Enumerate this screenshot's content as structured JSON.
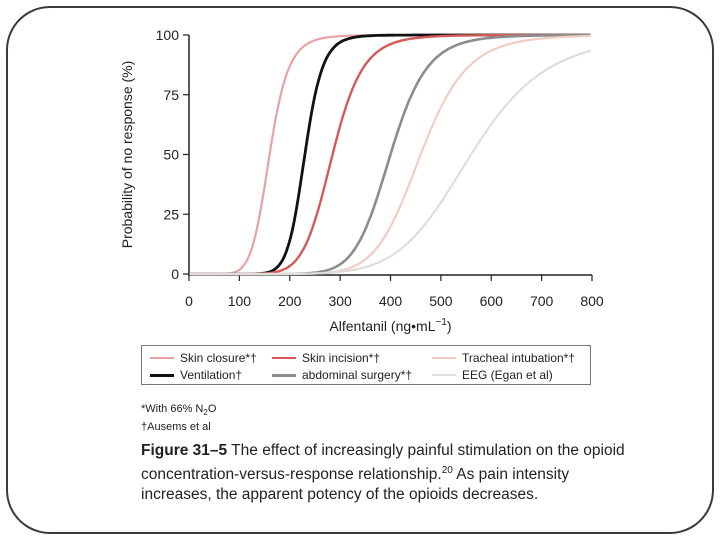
{
  "footnotes": {
    "n2o_prefix": "*With 66% N",
    "n2o_sub": "2",
    "n2o_suffix": "O",
    "ausems": "†Ausems et al"
  },
  "caption": {
    "fig_label": "Figure 31–5",
    "text": " The effect of increasingly painful stimulation on the opioid concentration-versus-response relationship.",
    "ref": "20",
    "text2": " As pain intensity increases, the apparent potency of the opioids decreases."
  },
  "chart_data": {
    "type": "line",
    "xlabel": "Alfentanil (ng•mL",
    "xlabel_sup": "−1",
    "xlabel_end": ")",
    "ylabel": "Probability of no response (%)",
    "xlim": [
      0,
      800
    ],
    "ylim": [
      0,
      100
    ],
    "xticks": [
      0,
      100,
      200,
      300,
      400,
      500,
      600,
      700,
      800
    ],
    "yticks": [
      0,
      25,
      50,
      75,
      100
    ],
    "grid": false,
    "legend_placement": "below",
    "series": [
      {
        "name": "Skin closure*†",
        "color": "#e8a3a3",
        "width": 2.2,
        "ec50": 160,
        "slope": 8.5,
        "x_start": 0,
        "x_end": 800
      },
      {
        "name": "Ventilation†",
        "color": "#111111",
        "width": 2.8,
        "ec50": 230,
        "slope": 13.0,
        "x_start": 0,
        "x_end": 800
      },
      {
        "name": "Skin incision*†",
        "color": "#d45a5a",
        "width": 2.4,
        "ec50": 285,
        "slope": 9.5,
        "x_start": 0,
        "x_end": 800
      },
      {
        "name": "abdominal surgery*†",
        "color": "#8c8c8c",
        "width": 2.6,
        "ec50": 400,
        "slope": 11.0,
        "x_start": 0,
        "x_end": 800
      },
      {
        "name": "Tracheal intubation*†",
        "color": "#f2cdc4",
        "width": 2.2,
        "ec50": 460,
        "slope": 10.0,
        "x_start": 0,
        "x_end": 800
      },
      {
        "name": "EEG (Egan et al)",
        "color": "#dedede",
        "width": 2.2,
        "ec50": 560,
        "slope": 7.5,
        "x_start": 0,
        "x_end": 800
      }
    ]
  }
}
